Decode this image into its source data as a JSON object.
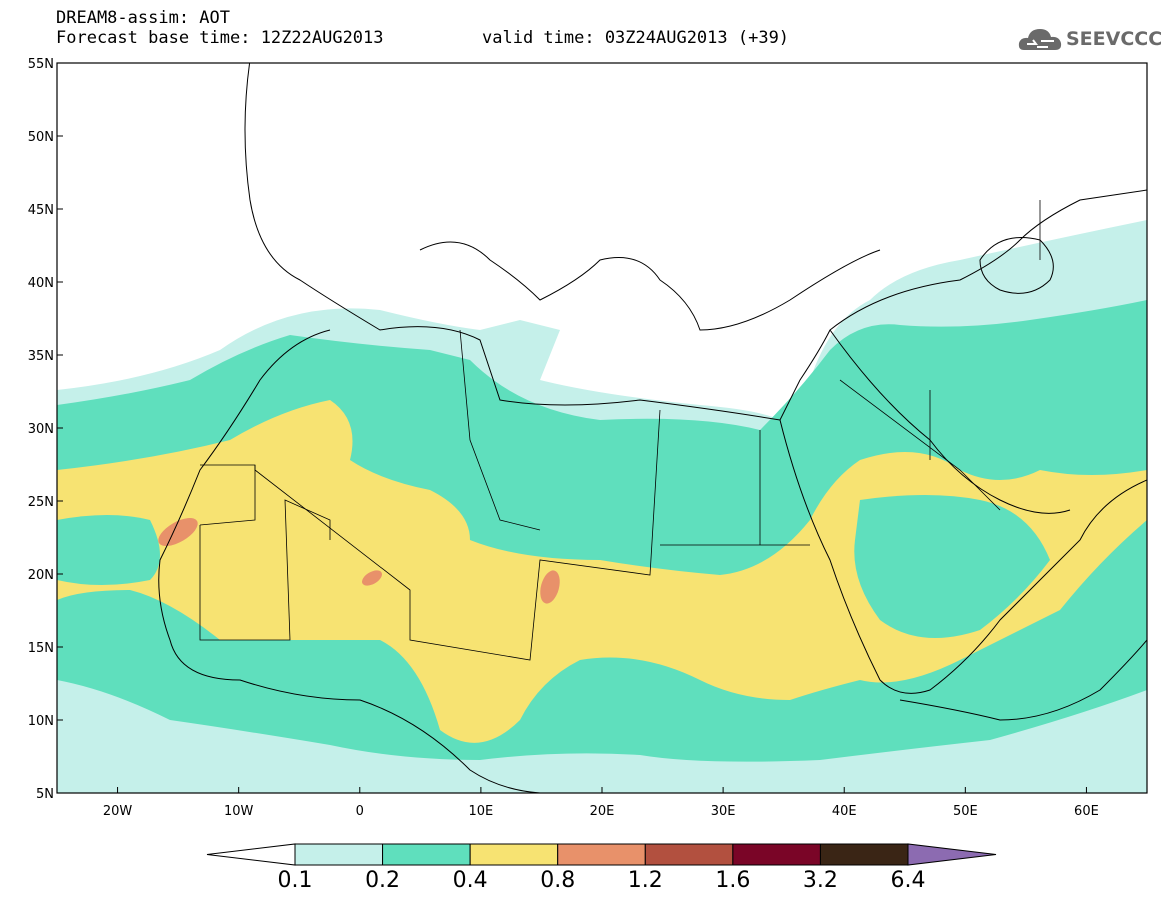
{
  "header": {
    "title": "DREAM8-assim: AOT",
    "base_time": "Forecast base time: 12Z22AUG2013",
    "valid_time": "valid time: 03Z24AUG2013 (+39)"
  },
  "logo": {
    "text": "SEEVCCC",
    "icon": "cloud-icon"
  },
  "map": {
    "projection": "lat-lon",
    "lon_range": [
      -25,
      65
    ],
    "lat_range": [
      5,
      55
    ],
    "lat_ticks": [
      {
        "value": 5,
        "label": "5N"
      },
      {
        "value": 10,
        "label": "10N"
      },
      {
        "value": 15,
        "label": "15N"
      },
      {
        "value": 20,
        "label": "20N"
      },
      {
        "value": 25,
        "label": "25N"
      },
      {
        "value": 30,
        "label": "30N"
      },
      {
        "value": 35,
        "label": "35N"
      },
      {
        "value": 40,
        "label": "40N"
      },
      {
        "value": 45,
        "label": "45N"
      },
      {
        "value": 50,
        "label": "50N"
      },
      {
        "value": 55,
        "label": "55N"
      }
    ],
    "lon_ticks": [
      {
        "value": -20,
        "label": "20W"
      },
      {
        "value": -10,
        "label": "10W"
      },
      {
        "value": 0,
        "label": "0"
      },
      {
        "value": 10,
        "label": "10E"
      },
      {
        "value": 20,
        "label": "20E"
      },
      {
        "value": 30,
        "label": "30E"
      },
      {
        "value": 40,
        "label": "40E"
      },
      {
        "value": 50,
        "label": "50E"
      },
      {
        "value": 60,
        "label": "60E"
      }
    ]
  },
  "colorbar": {
    "under_color": "#ffffff",
    "over_color": "#8c6bb1",
    "colors": [
      "#c5f0ea",
      "#5fdfbd",
      "#f7e372",
      "#e8916a",
      "#b2503f",
      "#7a0527",
      "#3a2515"
    ],
    "labels": [
      "0.1",
      "0.2",
      "0.4",
      "0.8",
      "1.2",
      "1.6",
      "3.2",
      "6.4"
    ]
  }
}
